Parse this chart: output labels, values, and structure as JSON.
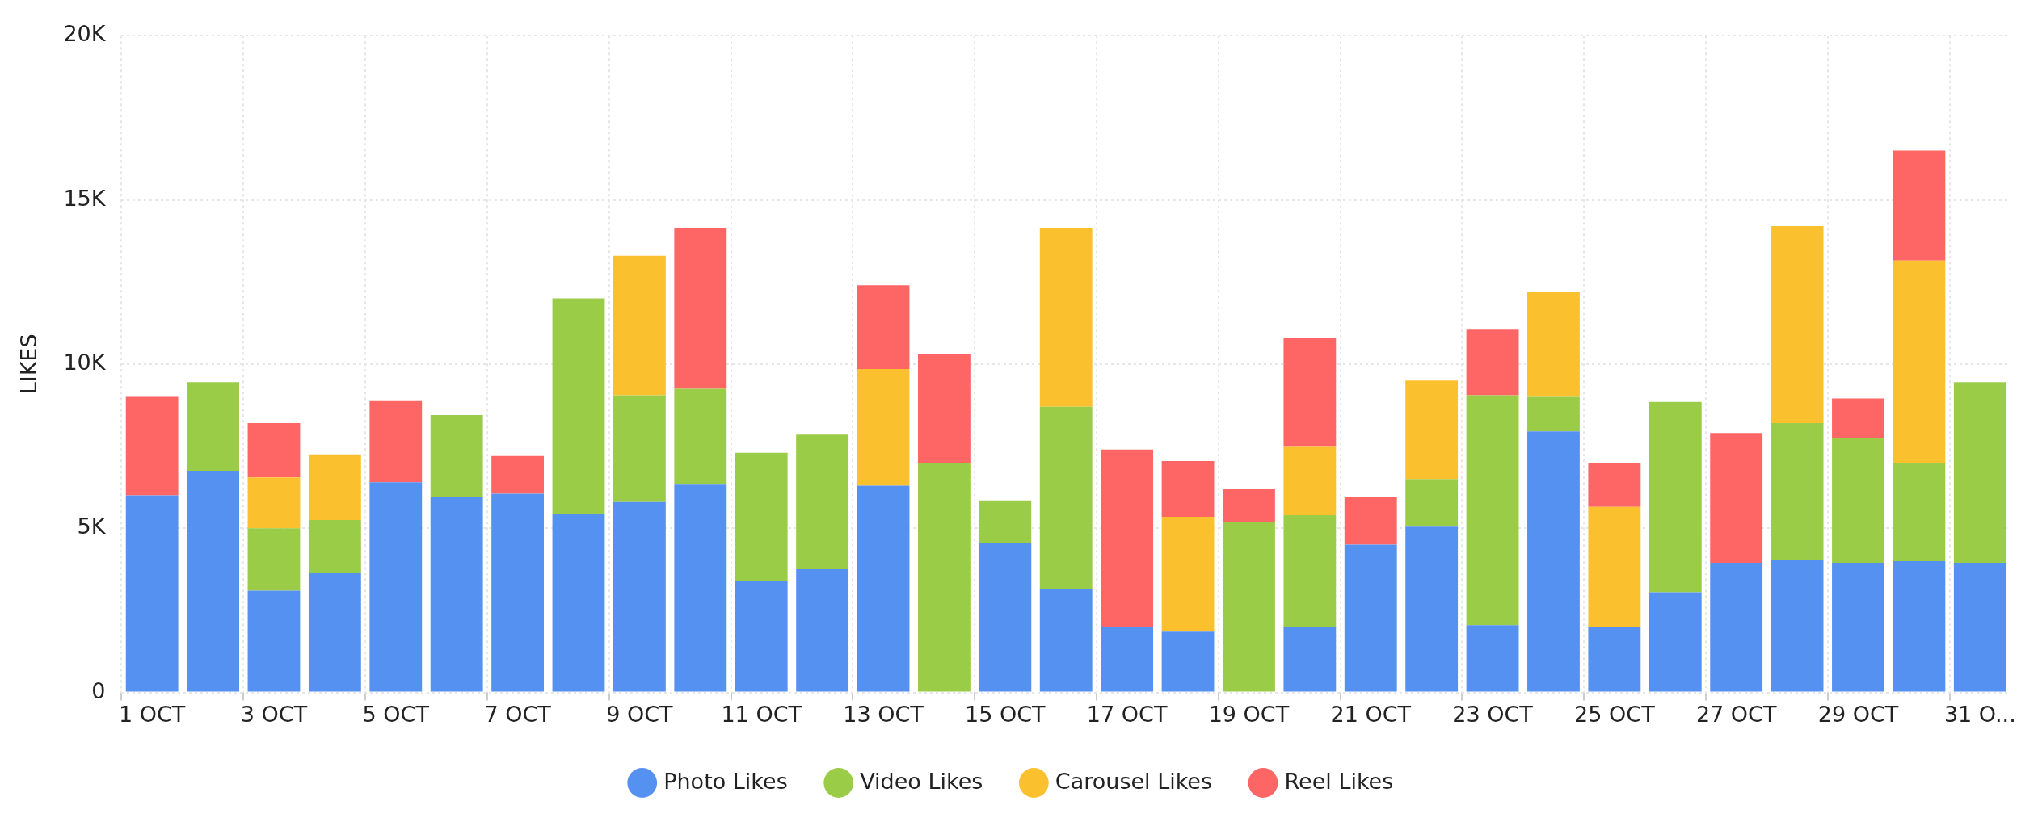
{
  "chart_data": {
    "type": "bar",
    "stacked": true,
    "ylabel": "LIKES",
    "legend": "bottom",
    "grid": true,
    "categories": [
      "1 OCT",
      null,
      "3 OCT",
      null,
      "5 OCT",
      null,
      "7 OCT",
      null,
      "9 OCT",
      null,
      "11 OCT",
      null,
      "13 OCT",
      null,
      "15 OCT",
      null,
      "17 OCT",
      null,
      "19 OCT",
      null,
      "21 OCT",
      null,
      "23 OCT",
      null,
      "25 OCT",
      null,
      "27 OCT",
      null,
      "29 OCT",
      null,
      "31 O..."
    ],
    "ylim": [
      0,
      20000
    ],
    "yticks": [
      {
        "value": 0,
        "label": "0"
      },
      {
        "value": 5000,
        "label": "5K"
      },
      {
        "value": 10000,
        "label": "10K"
      },
      {
        "value": 15000,
        "label": "15K"
      },
      {
        "value": 20000,
        "label": "20K"
      }
    ],
    "series": [
      {
        "name": "Photo Likes",
        "color": "#5591f0",
        "values": [
          6000,
          6750,
          3100,
          3650,
          6400,
          5950,
          6050,
          5450,
          5800,
          6350,
          3400,
          3750,
          6300,
          0,
          4550,
          3150,
          2000,
          1850,
          0,
          2000,
          4500,
          5050,
          2050,
          7950,
          2000,
          3050,
          3950,
          4050,
          3950,
          4000,
          3950
        ]
      },
      {
        "name": "Video Likes",
        "color": "#9bcc48",
        "values": [
          0,
          2700,
          1900,
          1600,
          0,
          2500,
          0,
          6550,
          3250,
          2900,
          3900,
          4100,
          0,
          7000,
          1300,
          5550,
          0,
          0,
          5200,
          3400,
          0,
          1450,
          7000,
          1050,
          0,
          5800,
          0,
          4150,
          3800,
          3000,
          5500
        ]
      },
      {
        "name": "Carousel Likes",
        "color": "#fbc02d",
        "values": [
          0,
          0,
          1550,
          2000,
          0,
          0,
          0,
          0,
          4250,
          0,
          0,
          0,
          3550,
          0,
          0,
          5450,
          0,
          3500,
          0,
          2100,
          0,
          3000,
          0,
          3200,
          3650,
          0,
          0,
          6000,
          0,
          6150,
          0
        ]
      },
      {
        "name": "Reel Likes",
        "color": "#fe6565",
        "values": [
          3000,
          0,
          1650,
          0,
          2500,
          0,
          1150,
          0,
          0,
          4900,
          0,
          0,
          2550,
          3300,
          0,
          0,
          5400,
          1700,
          1000,
          3300,
          1450,
          0,
          2000,
          0,
          1350,
          0,
          3950,
          0,
          1200,
          3350,
          0
        ]
      }
    ]
  }
}
